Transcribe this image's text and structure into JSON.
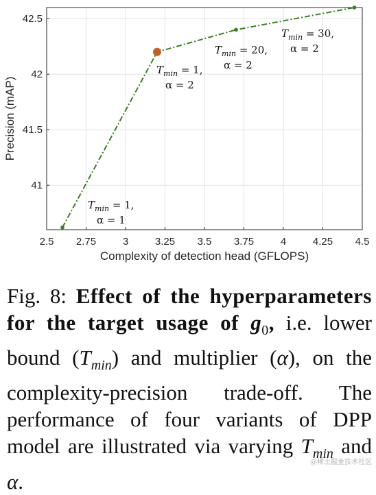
{
  "chart_data": {
    "type": "line",
    "xlabel": "Complexity of detection head (GFLOPS)",
    "ylabel": "Precision (mAP)",
    "xlim": [
      2.5,
      4.5
    ],
    "ylim": [
      40.6,
      42.6
    ],
    "x_ticks": [
      "2.5",
      "2.75",
      "3",
      "3.25",
      "3.5",
      "3.75",
      "4",
      "4.25",
      "4.5"
    ],
    "y_ticks": [
      "41",
      "41.5",
      "42",
      "42.5"
    ],
    "grid": true,
    "line_color": "#3a7d23",
    "highlight_color": "#c0622d",
    "series": [
      {
        "x": [
          2.6,
          3.2,
          3.7,
          4.45
        ],
        "y": [
          40.62,
          42.2,
          42.4,
          42.6
        ],
        "highlight_index": 1
      }
    ],
    "annotations": [
      {
        "line1": "T",
        "sub": "min",
        "eq": " = 1,",
        "line2": "α = 1"
      },
      {
        "line1": "T",
        "sub": "min",
        "eq": " = 1,",
        "line2": "α = 2"
      },
      {
        "line1": "T",
        "sub": "min",
        "eq": " = 20,",
        "line2": "α = 2"
      },
      {
        "line1": "T",
        "sub": "min",
        "eq": " = 30,",
        "line2": "α = 2"
      }
    ]
  },
  "caption": {
    "fig": "Fig. 8: ",
    "bold": "Effect of the hyperparameters for the target usage of",
    "g": "g",
    "g_sub": "0",
    "comma": ",",
    "rest1": " i.e. lower bound (",
    "T": "T",
    "min": "min",
    "rest2": ") and multiplier (",
    "alpha": "α",
    "rest3": "), on the complexity-precision trade-off. The performance of four variants of DPP model are illustrated via varying ",
    "T2": "T",
    "min2": "min",
    "and": " and ",
    "alpha2": "α",
    "end": "."
  },
  "watermark": "@稀土掘金技术社区"
}
